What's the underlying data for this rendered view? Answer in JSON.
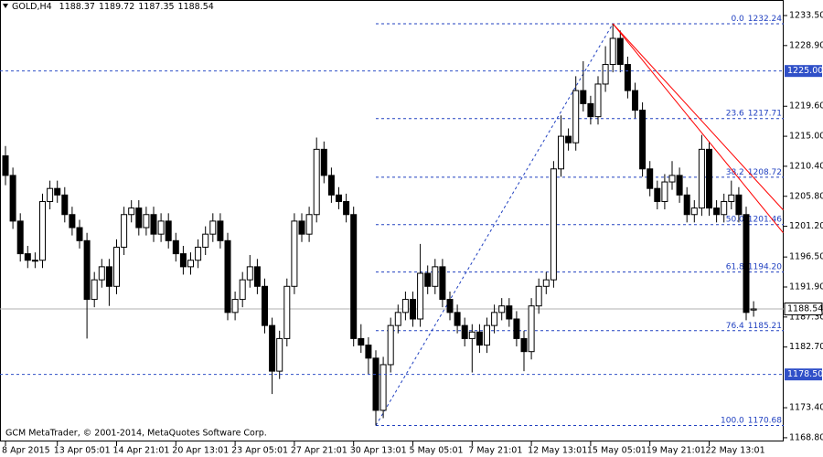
{
  "chart_data": {
    "type": "candlestick",
    "symbol": "GOLD,H4",
    "copyright": "GCM MetaTrader, © 2001-2014, MetaQuotes Software Corp.",
    "open": [
      1212,
      1209,
      1202,
      1197,
      1196,
      1196,
      1205,
      1207,
      1206,
      1203,
      1201,
      1199,
      1190,
      1193,
      1195,
      1192,
      1198,
      1203,
      1204,
      1201,
      1203,
      1200,
      1202,
      1199,
      1197,
      1195,
      1196,
      1198,
      1200,
      1202,
      1199,
      1188,
      1190,
      1193,
      1195,
      1192,
      1186,
      1179,
      1184,
      1192,
      1202,
      1200,
      1203,
      1213,
      1209,
      1206,
      1205,
      1203,
      1184,
      1183,
      1181,
      1173,
      1180,
      1186,
      1188,
      1190,
      1187,
      1194,
      1192,
      1195,
      1190,
      1188,
      1186,
      1184,
      1185,
      1183,
      1186,
      1188,
      1189,
      1187,
      1184,
      1182,
      1189,
      1192,
      1193,
      1210,
      1215,
      1214,
      1222,
      1220,
      1218,
      1223,
      1226,
      1230,
      1226,
      1222,
      1219,
      1210,
      1207,
      1205,
      1208,
      1209,
      1206,
      1203,
      1204,
      1213,
      1204,
      1203,
      1205,
      1206,
      1203,
      1188.37
    ],
    "high": [
      1213.5,
      1210.2,
      1203.2,
      1198.2,
      1197.2,
      1206.2,
      1208.2,
      1208.2,
      1207.2,
      1204.2,
      1202.2,
      1200.2,
      1194.2,
      1196.2,
      1196.2,
      1199.2,
      1204.2,
      1205.2,
      1205.2,
      1204.2,
      1204.2,
      1203.2,
      1203.2,
      1200.2,
      1198.2,
      1197.2,
      1199.2,
      1201.2,
      1203.2,
      1203.2,
      1200.2,
      1191.2,
      1194.2,
      1196.8,
      1196.2,
      1193.2,
      1187.2,
      1185.2,
      1193.2,
      1203.2,
      1203.2,
      1204.2,
      1214.8,
      1214.2,
      1210.2,
      1207.2,
      1206.2,
      1204.2,
      1186.2,
      1184.2,
      1182.2,
      1181.2,
      1187.2,
      1189.2,
      1191.2,
      1191.2,
      1198.5,
      1195.2,
      1196.2,
      1196.2,
      1191.2,
      1189.2,
      1187.2,
      1186.2,
      1186.2,
      1187.2,
      1189.2,
      1190.2,
      1190.2,
      1188.2,
      1185.2,
      1190.2,
      1193.2,
      1194.2,
      1211.2,
      1218.2,
      1216.2,
      1224.2,
      1226.5,
      1221.2,
      1224.2,
      1228.8,
      1232.24,
      1231.2,
      1227.2,
      1223.2,
      1220.2,
      1211.2,
      1208.2,
      1209.2,
      1211.2,
      1210.2,
      1207.2,
      1205.2,
      1215.2,
      1214.2,
      1205.2,
      1206.2,
      1208.2,
      1207.2,
      1204.2,
      1189.72
    ],
    "low": [
      1207.5,
      1200.8,
      1195.8,
      1194.8,
      1194.8,
      1194.8,
      1203.8,
      1204.8,
      1201.8,
      1199.8,
      1197.8,
      1184,
      1188.8,
      1191.8,
      1189,
      1190.8,
      1196.8,
      1201.8,
      1199.8,
      1199.8,
      1198.8,
      1198.8,
      1197.8,
      1195.8,
      1193.8,
      1193.8,
      1194.8,
      1196.8,
      1198.8,
      1197.8,
      1186.8,
      1186.8,
      1188.8,
      1191.8,
      1190.8,
      1184.8,
      1175.5,
      1177.8,
      1182.8,
      1190.8,
      1198.8,
      1198.8,
      1201.8,
      1207.8,
      1204.8,
      1203.8,
      1201.8,
      1182.8,
      1181.8,
      1178.5,
      1170.68,
      1171.8,
      1178.8,
      1184.8,
      1186.8,
      1185.8,
      1185.8,
      1190.8,
      1190.8,
      1188.8,
      1186.8,
      1184.8,
      1182.8,
      1178.8,
      1181.8,
      1181.8,
      1184.8,
      1186.8,
      1185.8,
      1182.8,
      1179,
      1180.8,
      1187.8,
      1190.8,
      1191.8,
      1208.8,
      1212.8,
      1212.8,
      1218.8,
      1216.8,
      1216.8,
      1221.8,
      1224.8,
      1224.8,
      1220.8,
      1217.8,
      1208.8,
      1205.8,
      1203.8,
      1203.8,
      1206.8,
      1204.8,
      1201.8,
      1201.8,
      1202.8,
      1202.8,
      1201.8,
      1201.8,
      1203.8,
      1201.8,
      1186.8,
      1187.35
    ],
    "close": [
      1209,
      1202,
      1197,
      1196,
      1196,
      1205,
      1207,
      1206,
      1203,
      1201,
      1199,
      1190,
      1193,
      1195,
      1192,
      1198,
      1203,
      1204,
      1201,
      1203,
      1200,
      1202,
      1199,
      1197,
      1195,
      1196,
      1198,
      1200,
      1202,
      1199,
      1188,
      1190,
      1193,
      1195,
      1192,
      1186,
      1179,
      1184,
      1192,
      1202,
      1200,
      1203,
      1213,
      1209,
      1206,
      1205,
      1203,
      1184,
      1183,
      1181,
      1173,
      1180,
      1186,
      1188,
      1190,
      1187,
      1194,
      1192,
      1195,
      1190,
      1188,
      1186,
      1184,
      1185,
      1183,
      1186,
      1188,
      1189,
      1187,
      1184,
      1182,
      1189,
      1192,
      1193,
      1210,
      1215,
      1214,
      1222,
      1220,
      1218,
      1223,
      1226,
      1230,
      1226,
      1222,
      1219,
      1210,
      1207,
      1205,
      1208,
      1209,
      1206,
      1203,
      1204,
      1213,
      1204,
      1203,
      1205,
      1206,
      1203,
      1188,
      1188.54
    ],
    "up_color": "#ffffff",
    "down_color": "#000000",
    "edge_color": "#000000",
    "ylim": [
      1168.23,
      1235.88
    ],
    "yticks": [
      {
        "value": 1233.5,
        "label": "1233.50"
      },
      {
        "value": 1228.9,
        "label": "1228.90"
      },
      {
        "value": 1219.6,
        "label": "1219.60"
      },
      {
        "value": 1215,
        "label": "1215.00"
      },
      {
        "value": 1210.4,
        "label": "1210.40"
      },
      {
        "value": 1205.8,
        "label": "1205.80"
      },
      {
        "value": 1201.2,
        "label": "1201.20"
      },
      {
        "value": 1196.5,
        "label": "1196.50"
      },
      {
        "value": 1191.9,
        "label": "1191.90"
      },
      {
        "value": 1187.3,
        "label": "1187.30"
      },
      {
        "value": 1182.7,
        "label": "1182.70"
      },
      {
        "value": 1173.4,
        "label": "1173.40"
      },
      {
        "value": 1168.8,
        "label": "1168.80"
      }
    ],
    "xticks": [
      {
        "value": 0,
        "label": "8 Apr 2015"
      },
      {
        "value": 7,
        "label": "13 Apr 05:01"
      },
      {
        "value": 15,
        "label": "14 Apr 21:01"
      },
      {
        "value": 23,
        "label": "20 Apr 13:01"
      },
      {
        "value": 31,
        "label": "23 Apr 05:01"
      },
      {
        "value": 39,
        "label": "27 Apr 21:01"
      },
      {
        "value": 47,
        "label": "30 Apr 13:01"
      },
      {
        "value": 55,
        "label": "5 May 05:01"
      },
      {
        "value": 63,
        "label": "7 May 21:01"
      },
      {
        "value": 71,
        "label": "12 May 13:01"
      },
      {
        "value": 79,
        "label": "15 May 05:01"
      },
      {
        "value": 87,
        "label": "19 May 21:01"
      },
      {
        "value": 95,
        "label": "22 May 13:01"
      }
    ],
    "hlines": [
      {
        "value": 1225,
        "label": "1225.00",
        "color": "#3050c8"
      },
      {
        "value": 1178.5,
        "label": "1178.50",
        "color": "#3050c8"
      }
    ],
    "last_price": 1188.54,
    "last_price_color": "#b0b0b0",
    "fibo": {
      "color": "#2040c0",
      "from_bar": 50,
      "to_bar": 82,
      "levels": [
        {
          "ratio": "0.0",
          "price": 1232.24
        },
        {
          "ratio": "23.6",
          "price": 1217.71
        },
        {
          "ratio": "38.2",
          "price": 1208.72
        },
        {
          "ratio": "50.0",
          "price": 1201.46
        },
        {
          "ratio": "61.8",
          "price": {
            "value": 1194.2,
            "label": "1194.20"
          }
        },
        {
          "ratio": "76.4",
          "price": 1185.21
        },
        {
          "ratio": "100.0",
          "price": 1170.68
        }
      ]
    },
    "trendlines": [
      {
        "color": "#ff0000",
        "from": {
          "bar": 82,
          "price": 1232.24
        },
        "to": {
          "bar": 105,
          "price": 1203.7
        }
      },
      {
        "color": "#ff0000",
        "from": {
          "bar": 82,
          "price": 1232.24
        },
        "to": {
          "bar": 105,
          "price": 1200.2
        }
      }
    ]
  }
}
